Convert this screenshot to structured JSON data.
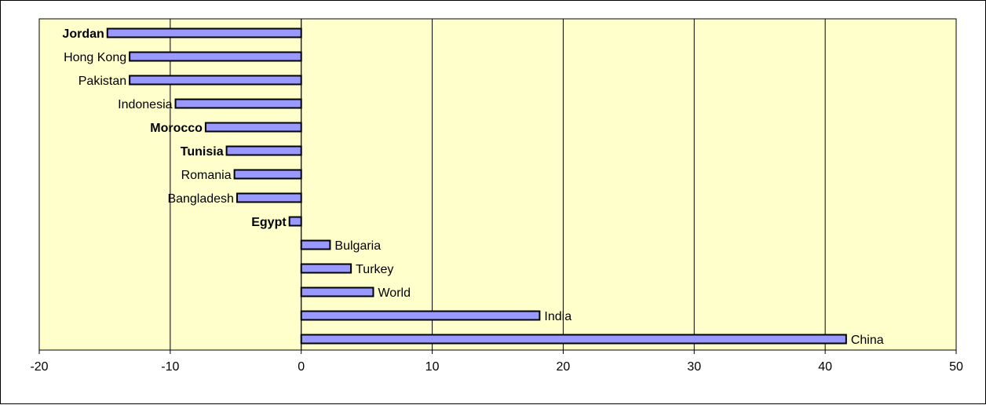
{
  "chart_data": {
    "type": "bar",
    "orientation": "horizontal",
    "title": "",
    "xlabel": "",
    "ylabel": "",
    "xlim": [
      -20,
      50
    ],
    "xticks": [
      -20,
      -10,
      0,
      10,
      20,
      30,
      40,
      50
    ],
    "grid": "vertical",
    "legend": "none",
    "colors": {
      "plot_background": "#ffffcc",
      "bar_fill": "#9999ff",
      "bar_stroke": "#000000",
      "grid": "#000000"
    },
    "categories": [
      "Jordan",
      "Hong Kong",
      "Pakistan",
      "Indonesia",
      "Morocco",
      "Tunisia",
      "Romania",
      "Bangladesh",
      "Egypt",
      "Bulgaria",
      "Turkey",
      "World",
      "India",
      "China"
    ],
    "bold_categories": [
      "Jordan",
      "Morocco",
      "Tunisia",
      "Egypt"
    ],
    "values": [
      -14.8,
      -13.1,
      -13.1,
      -9.6,
      -7.3,
      -5.7,
      -5.1,
      -4.9,
      -0.9,
      2.2,
      3.8,
      5.5,
      18.2,
      41.6
    ]
  }
}
